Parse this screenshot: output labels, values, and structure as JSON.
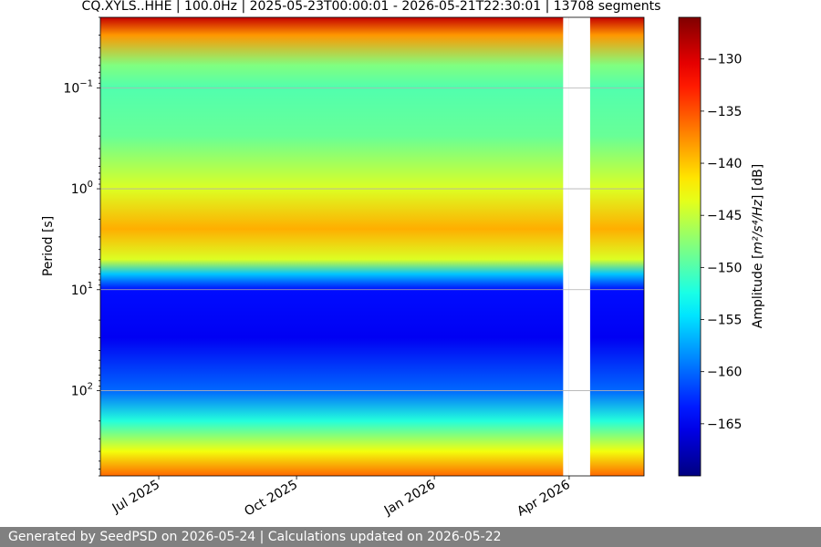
{
  "chart_data": {
    "type": "heatmap",
    "title": "CQ.XYLS..HHE | 100.0Hz | 2025-05-23T00:00:01 - 2026-05-21T22:30:01 | 13708 segments",
    "xlabel": "",
    "ylabel": "Period [s]",
    "x_range": [
      "2025-05-23",
      "2026-05-21"
    ],
    "x_ticks": [
      {
        "label": "Jul 2025",
        "date": "2025-07-01"
      },
      {
        "label": "Oct 2025",
        "date": "2025-10-01"
      },
      {
        "label": "Jan 2026",
        "date": "2026-01-01"
      },
      {
        "label": "Apr 2026",
        "date": "2026-04-01"
      }
    ],
    "y_scale": "log",
    "y_inverted": true,
    "y_range": [
      0.02,
      700
    ],
    "y_ticks": [
      {
        "base": "10",
        "exp": "−1",
        "value": 0.1
      },
      {
        "base": "10",
        "exp": "0",
        "value": 1
      },
      {
        "base": "10",
        "exp": "1",
        "value": 10
      },
      {
        "base": "10",
        "exp": "2",
        "value": 100
      }
    ],
    "grid": true,
    "colormap": "jet",
    "colorbar": {
      "label_pre": "Amplitude [",
      "label_math": "m²/s⁴/Hz",
      "label_post": "] [dB]",
      "range": [
        -170,
        -126
      ],
      "ticks": [
        -130,
        -135,
        -140,
        -145,
        -150,
        -155,
        -160,
        -165
      ]
    },
    "period_profile_db": [
      {
        "period": 0.02,
        "db": -129
      },
      {
        "period": 0.03,
        "db": -138
      },
      {
        "period": 0.06,
        "db": -148
      },
      {
        "period": 0.1,
        "db": -150
      },
      {
        "period": 0.3,
        "db": -149
      },
      {
        "period": 1.0,
        "db": -144
      },
      {
        "period": 2.5,
        "db": -139
      },
      {
        "period": 5.0,
        "db": -144
      },
      {
        "period": 7.0,
        "db": -156
      },
      {
        "period": 10,
        "db": -164
      },
      {
        "period": 30,
        "db": -165
      },
      {
        "period": 100,
        "db": -160
      },
      {
        "period": 200,
        "db": -152
      },
      {
        "period": 400,
        "db": -143
      },
      {
        "period": 700,
        "db": -136
      }
    ],
    "data_gaps": [
      {
        "start": "2026-03-28",
        "end": "2026-04-01"
      },
      {
        "start": "2026-04-01",
        "end": "2026-04-15"
      }
    ]
  },
  "footer": "Generated by SeedPSD on 2026-05-24 | Calculations updated on 2026-05-22"
}
